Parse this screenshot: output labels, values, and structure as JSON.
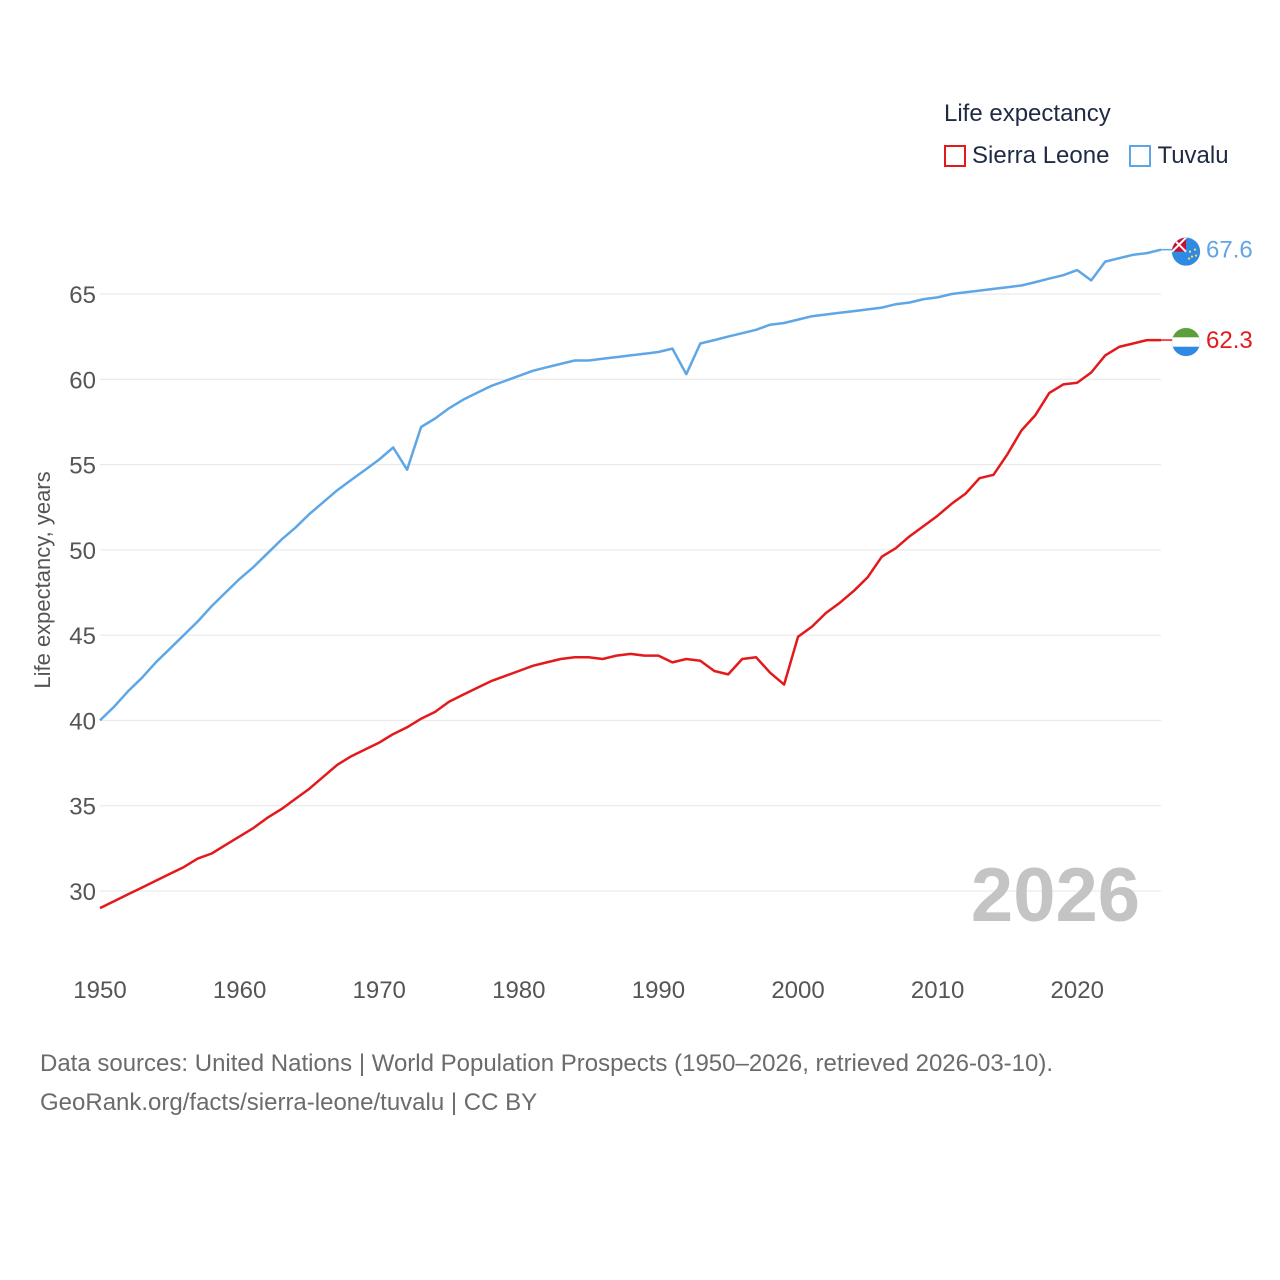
{
  "chart_data": {
    "type": "line",
    "title": "Life expectancy",
    "ylabel": "Life expectancy, years",
    "xlabel": "",
    "xlim": [
      1950,
      2026
    ],
    "ylim": [
      27.5,
      69
    ],
    "x_ticks": [
      1950,
      1960,
      1970,
      1980,
      1990,
      2000,
      2010,
      2020
    ],
    "y_ticks": [
      30,
      35,
      40,
      45,
      50,
      55,
      60,
      65
    ],
    "current_year": "2026",
    "x": [
      1950,
      1951,
      1952,
      1953,
      1954,
      1955,
      1956,
      1957,
      1958,
      1959,
      1960,
      1961,
      1962,
      1963,
      1964,
      1965,
      1966,
      1967,
      1968,
      1969,
      1970,
      1971,
      1972,
      1973,
      1974,
      1975,
      1976,
      1977,
      1978,
      1979,
      1980,
      1981,
      1982,
      1983,
      1984,
      1985,
      1986,
      1987,
      1988,
      1989,
      1990,
      1991,
      1992,
      1993,
      1994,
      1995,
      1996,
      1997,
      1998,
      1999,
      2000,
      2001,
      2002,
      2003,
      2004,
      2005,
      2006,
      2007,
      2008,
      2009,
      2010,
      2011,
      2012,
      2013,
      2014,
      2015,
      2016,
      2017,
      2018,
      2019,
      2020,
      2021,
      2022,
      2023,
      2024,
      2025,
      2026
    ],
    "series": [
      {
        "name": "Sierra Leone",
        "color": "#e31a1c",
        "end_label": "62.3",
        "flag": "sierra-leone-flag",
        "values": [
          29.0,
          29.4,
          29.8,
          30.2,
          30.6,
          31.0,
          31.4,
          31.9,
          32.2,
          32.7,
          33.2,
          33.7,
          34.3,
          34.8,
          35.4,
          36.0,
          36.7,
          37.4,
          37.9,
          38.3,
          38.7,
          39.2,
          39.6,
          40.1,
          40.5,
          41.1,
          41.5,
          41.9,
          42.3,
          42.6,
          42.9,
          43.2,
          43.4,
          43.6,
          43.7,
          43.7,
          43.6,
          43.8,
          43.9,
          43.8,
          43.8,
          43.4,
          43.6,
          43.5,
          42.9,
          42.7,
          43.6,
          43.7,
          42.8,
          42.1,
          44.9,
          45.5,
          46.3,
          46.9,
          47.6,
          48.4,
          49.6,
          50.1,
          50.8,
          51.4,
          52.0,
          52.7,
          53.3,
          54.2,
          54.4,
          55.6,
          57.0,
          57.9,
          59.2,
          59.7,
          59.8,
          60.4,
          61.4,
          61.9,
          62.1,
          62.3,
          62.3
        ]
      },
      {
        "name": "Tuvalu",
        "color": "#5ea6e6",
        "end_label": "67.6",
        "flag": "tuvalu-flag",
        "values": [
          40.0,
          40.8,
          41.7,
          42.5,
          43.4,
          44.2,
          45.0,
          45.8,
          46.7,
          47.5,
          48.3,
          49.0,
          49.8,
          50.6,
          51.3,
          52.1,
          52.8,
          53.5,
          54.1,
          54.7,
          55.3,
          56.0,
          54.7,
          57.2,
          57.7,
          58.3,
          58.8,
          59.2,
          59.6,
          59.9,
          60.2,
          60.5,
          60.7,
          60.9,
          61.1,
          61.1,
          61.2,
          61.3,
          61.4,
          61.5,
          61.6,
          61.8,
          60.3,
          62.1,
          62.3,
          62.5,
          62.7,
          62.9,
          63.2,
          63.3,
          63.5,
          63.7,
          63.8,
          63.9,
          64.0,
          64.1,
          64.2,
          64.4,
          64.5,
          64.7,
          64.8,
          65.0,
          65.1,
          65.2,
          65.3,
          65.4,
          65.5,
          65.7,
          65.9,
          66.1,
          66.4,
          65.8,
          66.9,
          67.1,
          67.3,
          67.4,
          67.6
        ]
      }
    ]
  },
  "legend": {
    "title": "Life expectancy",
    "items": [
      "Sierra Leone",
      "Tuvalu"
    ]
  },
  "source": {
    "line1": "Data sources: United Nations | World Population Prospects (1950–2026, retrieved 2026-03-10).",
    "line2": "GeoRank.org/facts/sierra-leone/tuvalu | CC BY"
  }
}
